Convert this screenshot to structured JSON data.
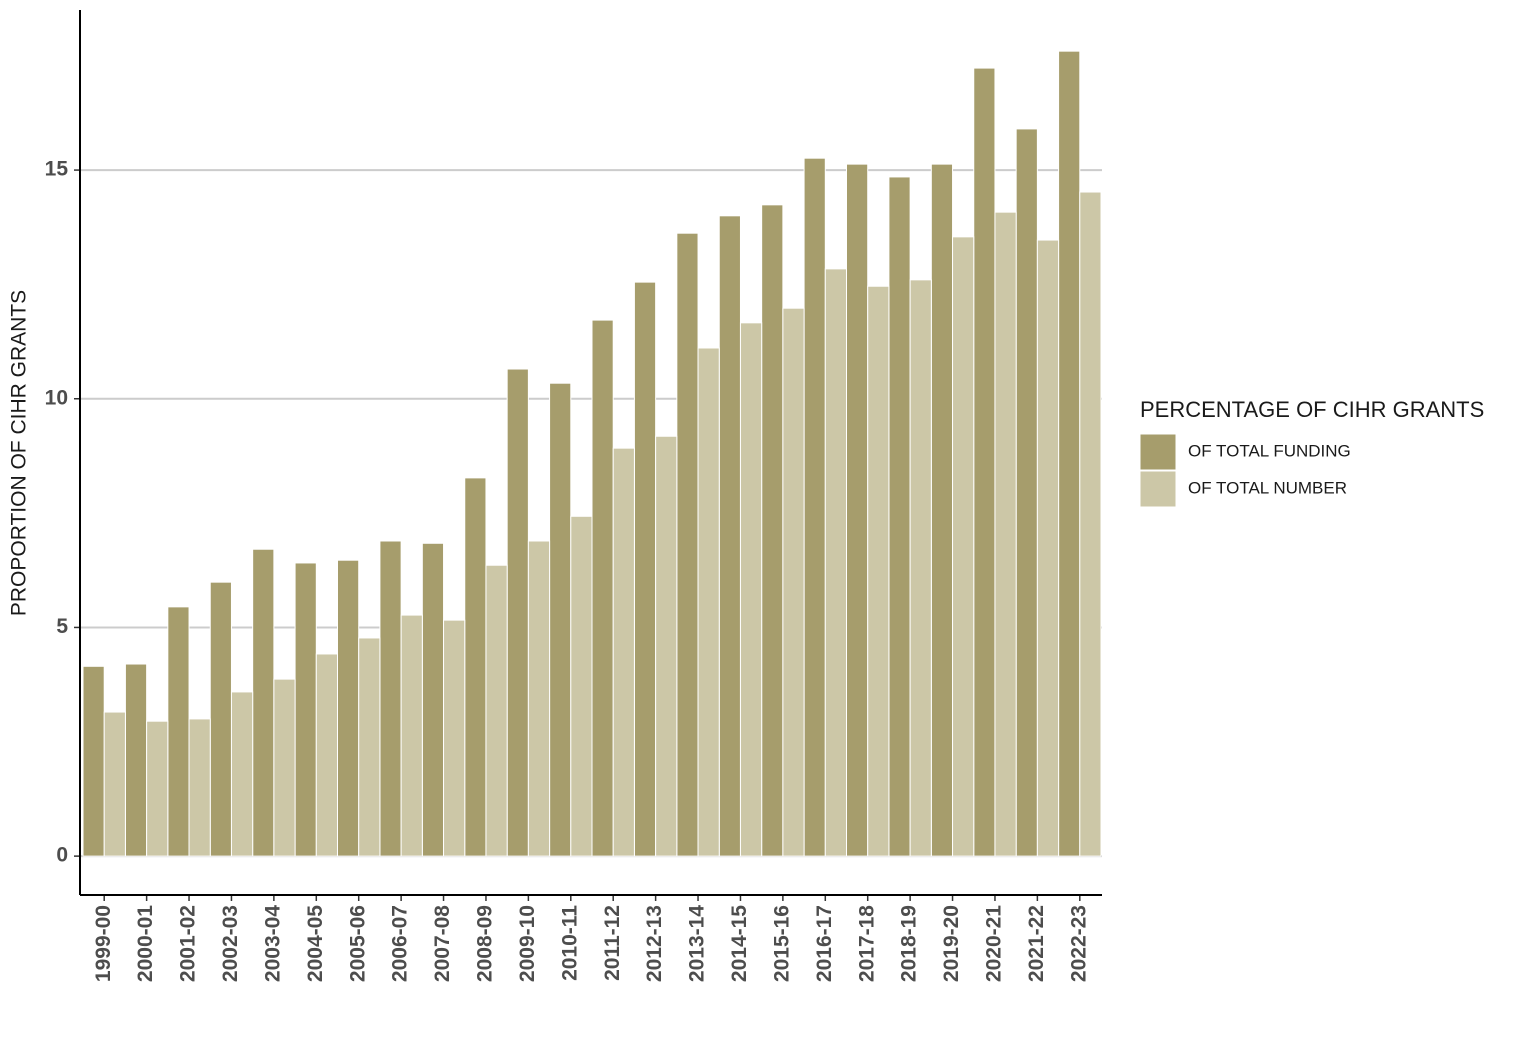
{
  "chart_data": {
    "type": "bar",
    "y_label": "PROPORTION OF CIHR GRANTS",
    "legend_title": "PERCENTAGE OF CIHR GRANTS",
    "legend_position": "right",
    "grid": true,
    "categories": [
      "1999-00",
      "2000-01",
      "2001-02",
      "2002-03",
      "2003-04",
      "2004-05",
      "2005-06",
      "2006-07",
      "2007-08",
      "2008-09",
      "2009-10",
      "2010-11",
      "2011-12",
      "2012-13",
      "2013-14",
      "2014-15",
      "2015-16",
      "2016-17",
      "2017-18",
      "2018-19",
      "2019-20",
      "2020-21",
      "2021-22",
      "2022-23"
    ],
    "series": [
      {
        "name": "OF TOTAL FUNDING",
        "color": "#a69d6c",
        "values": [
          4.15,
          4.2,
          5.45,
          5.99,
          6.71,
          6.41,
          6.47,
          6.89,
          6.84,
          8.27,
          10.65,
          10.34,
          11.72,
          12.55,
          13.62,
          14.0,
          14.24,
          15.26,
          15.13,
          14.85,
          15.13,
          17.23,
          15.9,
          17.6
        ]
      },
      {
        "name": "OF TOTAL NUMBER",
        "color": "#ccc7a7",
        "values": [
          3.15,
          2.95,
          3.0,
          3.59,
          3.87,
          4.42,
          4.77,
          5.27,
          5.16,
          6.36,
          6.89,
          7.43,
          8.92,
          9.18,
          11.11,
          11.66,
          11.98,
          12.84,
          12.46,
          12.6,
          13.54,
          14.08,
          13.47,
          14.52
        ]
      }
    ],
    "ylim": [
      -0.85,
      18.5
    ],
    "yticks": [
      0,
      5,
      10,
      15
    ]
  }
}
